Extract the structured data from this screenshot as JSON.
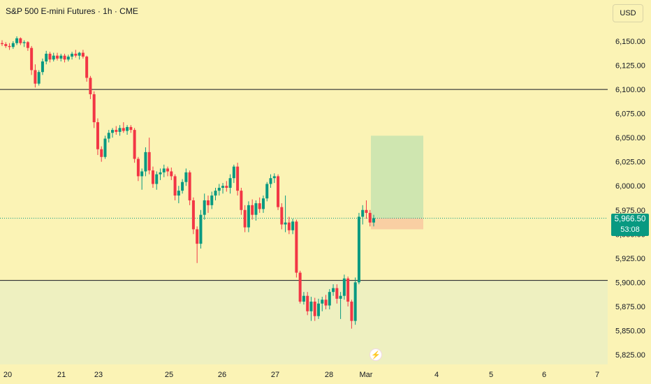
{
  "header": {
    "title": "S&P 500 E-mini Futures · 1h · CME",
    "currency_button": "USD"
  },
  "current_price": {
    "value": "5,966.50",
    "countdown": "53:08",
    "badge_color": "#089981"
  },
  "colors": {
    "background": "#fbf3b5",
    "up": "#089981",
    "down": "#f23645",
    "target_zone": "#cfe6b0",
    "stop_zone": "#f9cfa3",
    "demand_zone": "#eef0c0"
  },
  "event_icon": "lightning-bolt-icon",
  "chart_data": {
    "type": "candlestick",
    "title": "S&P 500 E-mini Futures · 1h · CME",
    "y_axis": {
      "range": [
        5815,
        6165
      ],
      "ticks": [
        "6,150.00",
        "6,125.00",
        "6,100.00",
        "6,075.00",
        "6,050.00",
        "6,025.00",
        "6,000.00",
        "5,975.00",
        "5,950.00",
        "5,925.00",
        "5,900.00",
        "5,875.00",
        "5,850.00",
        "5,825.00"
      ]
    },
    "x_axis": {
      "tick_labels": [
        "20",
        "21",
        "23",
        "25",
        "26",
        "27",
        "28",
        "Mar",
        "4",
        "5",
        "6",
        "7"
      ]
    },
    "horizontal_lines": [
      6100,
      5902
    ],
    "last_price": 5966.5,
    "position_tool": {
      "entry": 5966.5,
      "target": 6052,
      "stop": 5955
    },
    "demand_zone": {
      "from": 5815,
      "to": 5902
    },
    "candles": [
      [
        6148,
        6151,
        6145,
        6147
      ],
      [
        6147,
        6149,
        6143,
        6145
      ],
      [
        6145,
        6148,
        6141,
        6144
      ],
      [
        6144,
        6150,
        6142,
        6148
      ],
      [
        6148,
        6155,
        6146,
        6153
      ],
      [
        6153,
        6154,
        6146,
        6148
      ],
      [
        6148,
        6151,
        6144,
        6149
      ],
      [
        6149,
        6150,
        6140,
        6143
      ],
      [
        6143,
        6145,
        6115,
        6120
      ],
      [
        6120,
        6126,
        6102,
        6106
      ],
      [
        6106,
        6120,
        6104,
        6118
      ],
      [
        6118,
        6132,
        6115,
        6129
      ],
      [
        6129,
        6140,
        6126,
        6137
      ],
      [
        6137,
        6139,
        6128,
        6131
      ],
      [
        6131,
        6138,
        6129,
        6135
      ],
      [
        6135,
        6138,
        6130,
        6132
      ],
      [
        6132,
        6137,
        6129,
        6135
      ],
      [
        6135,
        6137,
        6128,
        6131
      ],
      [
        6131,
        6136,
        6129,
        6134
      ],
      [
        6134,
        6139,
        6131,
        6137
      ],
      [
        6137,
        6141,
        6133,
        6135
      ],
      [
        6135,
        6139,
        6131,
        6138
      ],
      [
        6138,
        6141,
        6132,
        6134
      ],
      [
        6134,
        6135,
        6108,
        6112
      ],
      [
        6112,
        6114,
        6090,
        6095
      ],
      [
        6095,
        6098,
        6060,
        6066
      ],
      [
        6066,
        6070,
        6032,
        6038
      ],
      [
        6038,
        6041,
        6025,
        6030
      ],
      [
        6030,
        6052,
        6028,
        6049
      ],
      [
        6049,
        6058,
        6045,
        6055
      ],
      [
        6055,
        6060,
        6050,
        6058
      ],
      [
        6058,
        6062,
        6053,
        6056
      ],
      [
        6056,
        6063,
        6052,
        6060
      ],
      [
        6060,
        6066,
        6055,
        6057
      ],
      [
        6057,
        6063,
        6053,
        6061
      ],
      [
        6061,
        6063,
        6055,
        6058
      ],
      [
        6058,
        6060,
        6024,
        6028
      ],
      [
        6028,
        6030,
        6005,
        6010
      ],
      [
        6010,
        6018,
        5996,
        6015
      ],
      [
        6015,
        6040,
        6010,
        6035
      ],
      [
        6035,
        6050,
        6012,
        6016
      ],
      [
        6016,
        6020,
        5998,
        6002
      ],
      [
        6002,
        6015,
        5996,
        6012
      ],
      [
        6012,
        6018,
        6006,
        6014
      ],
      [
        6014,
        6022,
        6009,
        6018
      ],
      [
        6018,
        6020,
        6010,
        6015
      ],
      [
        6015,
        6019,
        6006,
        6010
      ],
      [
        6010,
        6012,
        5985,
        5990
      ],
      [
        5990,
        6000,
        5982,
        5995
      ],
      [
        5995,
        6007,
        5992,
        6004
      ],
      [
        6004,
        6018,
        6000,
        6014
      ],
      [
        6014,
        6016,
        5980,
        5985
      ],
      [
        5985,
        5988,
        5950,
        5955
      ],
      [
        5955,
        5958,
        5920,
        5940
      ],
      [
        5940,
        5975,
        5935,
        5970
      ],
      [
        5970,
        5992,
        5965,
        5985
      ],
      [
        5985,
        5990,
        5972,
        5980
      ],
      [
        5980,
        5994,
        5976,
        5990
      ],
      [
        5990,
        5998,
        5985,
        5995
      ],
      [
        5995,
        6002,
        5990,
        5998
      ],
      [
        5998,
        6003,
        5992,
        6000
      ],
      [
        6000,
        6005,
        5994,
        5998
      ],
      [
        5998,
        6012,
        5992,
        6008
      ],
      [
        6008,
        6022,
        6003,
        6020
      ],
      [
        6020,
        6024,
        5990,
        5995
      ],
      [
        5995,
        5998,
        5970,
        5975
      ],
      [
        5975,
        5980,
        5952,
        5957
      ],
      [
        5957,
        5984,
        5952,
        5980
      ],
      [
        5980,
        5986,
        5965,
        5970
      ],
      [
        5970,
        5985,
        5964,
        5982
      ],
      [
        5982,
        5988,
        5972,
        5976
      ],
      [
        5976,
        5990,
        5972,
        5987
      ],
      [
        5987,
        6004,
        5984,
        6002
      ],
      [
        6002,
        6012,
        5998,
        6008
      ],
      [
        6008,
        6013,
        6003,
        6010
      ],
      [
        6010,
        6012,
        5975,
        5978
      ],
      [
        5978,
        5982,
        5955,
        5960
      ],
      [
        5960,
        5990,
        5952,
        5962
      ],
      [
        5962,
        5968,
        5950,
        5954
      ],
      [
        5954,
        5966,
        5950,
        5963
      ],
      [
        5963,
        5965,
        5905,
        5910
      ],
      [
        5910,
        5912,
        5878,
        5880
      ],
      [
        5880,
        5890,
        5877,
        5886
      ],
      [
        5886,
        5890,
        5866,
        5870
      ],
      [
        5870,
        5885,
        5860,
        5880
      ],
      [
        5880,
        5884,
        5860,
        5865
      ],
      [
        5865,
        5883,
        5862,
        5878
      ],
      [
        5878,
        5885,
        5870,
        5882
      ],
      [
        5882,
        5887,
        5872,
        5876
      ],
      [
        5876,
        5893,
        5872,
        5890
      ],
      [
        5890,
        5898,
        5886,
        5894
      ],
      [
        5894,
        5898,
        5878,
        5883
      ],
      [
        5883,
        5890,
        5862,
        5886
      ],
      [
        5886,
        5908,
        5882,
        5904
      ],
      [
        5904,
        5906,
        5875,
        5880
      ],
      [
        5880,
        5882,
        5852,
        5860
      ],
      [
        5860,
        5905,
        5856,
        5900
      ],
      [
        5900,
        5972,
        5898,
        5968
      ],
      [
        5968,
        5980,
        5960,
        5975
      ],
      [
        5975,
        5985,
        5966,
        5972
      ],
      [
        5972,
        5975,
        5958,
        5962
      ],
      [
        5962,
        5970,
        5958,
        5966.5
      ]
    ]
  }
}
